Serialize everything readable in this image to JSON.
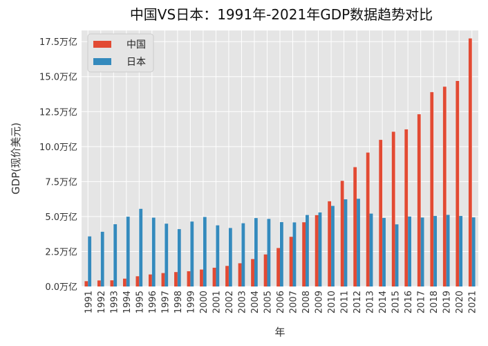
{
  "chart_data": {
    "type": "bar",
    "title": "中国VS日本：1991年-2021年GDP数据趋势对比",
    "xlabel": "年",
    "ylabel": "GDP(现价美元)",
    "categories": [
      "1991",
      "1992",
      "1993",
      "1994",
      "1995",
      "1996",
      "1997",
      "1998",
      "1999",
      "2000",
      "2001",
      "2002",
      "2003",
      "2004",
      "2005",
      "2006",
      "2007",
      "2008",
      "2009",
      "2010",
      "2011",
      "2012",
      "2013",
      "2014",
      "2015",
      "2016",
      "2017",
      "2018",
      "2019",
      "2020",
      "2021"
    ],
    "series": [
      {
        "name": "中国",
        "color": "#E24A33",
        "values": [
          0.38,
          0.43,
          0.44,
          0.56,
          0.73,
          0.86,
          0.96,
          1.03,
          1.09,
          1.21,
          1.34,
          1.47,
          1.66,
          1.96,
          2.29,
          2.75,
          3.55,
          4.59,
          5.1,
          6.09,
          7.55,
          8.53,
          9.57,
          10.48,
          11.06,
          11.23,
          12.31,
          13.89,
          14.28,
          14.69,
          17.73
        ]
      },
      {
        "name": "日本",
        "color": "#348ABD",
        "values": [
          3.58,
          3.91,
          4.45,
          4.99,
          5.55,
          4.92,
          4.49,
          4.1,
          4.64,
          4.97,
          4.37,
          4.18,
          4.52,
          4.89,
          4.83,
          4.6,
          4.58,
          5.11,
          5.29,
          5.76,
          6.23,
          6.27,
          5.21,
          4.9,
          4.44,
          5.0,
          4.93,
          5.04,
          5.12,
          5.04,
          4.94
        ]
      }
    ],
    "ylim": [
      0,
      18.3
    ],
    "yticks": [
      "0.0万亿",
      "2.5万亿",
      "5.0万亿",
      "7.5万亿",
      "10.0万亿",
      "12.5万亿",
      "15.0万亿",
      "17.5万亿"
    ],
    "ytick_values": [
      0,
      2.5,
      5.0,
      7.5,
      10.0,
      12.5,
      15.0,
      17.5
    ],
    "grid": true,
    "legend": "top-left",
    "plot_background": "#E5E5E5"
  }
}
